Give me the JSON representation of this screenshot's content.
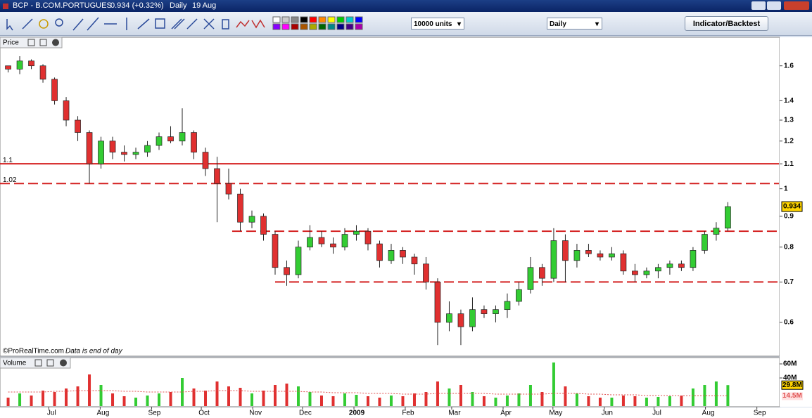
{
  "window": {
    "name": "BCP - B.COM.PORTUGUES",
    "quote": "0.934 (+0.32%)",
    "period": "Daily",
    "date": "19 Aug"
  },
  "toolbar": {
    "units": "10000 units",
    "timeframe": "Daily",
    "button": "Indicator/Backtest"
  },
  "footer": {
    "copyright": "©ProRealTime.com",
    "note": "Data is end of day"
  },
  "chart_data": [
    {
      "type": "candlestick",
      "title": "Price",
      "log_scale": true,
      "up_color": "#33cc33",
      "down_color": "#e03030",
      "ylim": [
        0.53,
        1.78
      ],
      "yticks": [
        0.6,
        0.7,
        0.8,
        0.9,
        1,
        1.1,
        1.2,
        1.3,
        1.4,
        1.6
      ],
      "xlim": [
        -4.2,
        62.9
      ],
      "xticks": [
        {
          "value": 0,
          "label": "Jul"
        },
        {
          "value": 4.43,
          "label": "Aug"
        },
        {
          "value": 8.86,
          "label": "Sep"
        },
        {
          "value": 13.14,
          "label": "Oct"
        },
        {
          "value": 17.57,
          "label": "Nov"
        },
        {
          "value": 21.86,
          "label": "Dec"
        },
        {
          "value": 26.29,
          "label": "2009"
        },
        {
          "value": 30.71,
          "label": "Feb"
        },
        {
          "value": 34.71,
          "label": "Mar"
        },
        {
          "value": 39.14,
          "label": "Apr"
        },
        {
          "value": 43.43,
          "label": "May"
        },
        {
          "value": 47.86,
          "label": "Jun"
        },
        {
          "value": 52.14,
          "label": "Jul"
        },
        {
          "value": 56.57,
          "label": "Aug"
        },
        {
          "value": 61,
          "label": "Sep"
        }
      ],
      "x": [
        -3.5,
        -2.5,
        -1.5,
        -0.5,
        0.5,
        1.5,
        2.5,
        3.5,
        4.5,
        5.5,
        6.5,
        7.5,
        8.5,
        9.5,
        10.5,
        11.5,
        12.5,
        13.5,
        14.5,
        15.5,
        16.5,
        17.5,
        18.5,
        19.5,
        20.5,
        21.5,
        22.5,
        23.5,
        24.5,
        25.5,
        26.5,
        27.5,
        28.5,
        29.5,
        30.5,
        31.5,
        32.5,
        33.5,
        34.5,
        35.5,
        36.5,
        37.5,
        38.5,
        39.5,
        40.5,
        41.5,
        42.5,
        43.5,
        44.5,
        45.5,
        46.5,
        47.5,
        48.5,
        49.5,
        50.5,
        51.5,
        52.5,
        53.5,
        54.5,
        55.5,
        56.5,
        57.5,
        58.5
      ],
      "open": [
        1.6,
        1.58,
        1.63,
        1.6,
        1.52,
        1.4,
        1.3,
        1.24,
        1.1,
        1.2,
        1.15,
        1.14,
        1.15,
        1.18,
        1.22,
        1.2,
        1.24,
        1.15,
        1.08,
        1.02,
        0.98,
        0.88,
        0.9,
        0.84,
        0.74,
        0.72,
        0.8,
        0.83,
        0.81,
        0.8,
        0.84,
        0.85,
        0.81,
        0.76,
        0.79,
        0.77,
        0.75,
        0.7,
        0.6,
        0.62,
        0.59,
        0.63,
        0.62,
        0.63,
        0.65,
        0.68,
        0.74,
        0.71,
        0.82,
        0.76,
        0.79,
        0.78,
        0.77,
        0.78,
        0.73,
        0.72,
        0.73,
        0.74,
        0.75,
        0.74,
        0.79,
        0.84,
        0.86
      ],
      "high": [
        1.6,
        1.66,
        1.64,
        1.61,
        1.53,
        1.42,
        1.32,
        1.25,
        1.22,
        1.22,
        1.18,
        1.17,
        1.2,
        1.24,
        1.27,
        1.36,
        1.25,
        1.17,
        1.13,
        1.08,
        1.0,
        0.92,
        0.91,
        0.85,
        0.76,
        0.82,
        0.87,
        0.85,
        0.83,
        0.86,
        0.87,
        0.86,
        0.82,
        0.81,
        0.8,
        0.78,
        0.77,
        0.71,
        0.65,
        0.63,
        0.66,
        0.64,
        0.64,
        0.67,
        0.7,
        0.77,
        0.75,
        0.86,
        0.84,
        0.81,
        0.81,
        0.79,
        0.8,
        0.79,
        0.75,
        0.74,
        0.75,
        0.76,
        0.76,
        0.8,
        0.85,
        0.88,
        0.95
      ],
      "low": [
        1.56,
        1.55,
        1.58,
        1.5,
        1.38,
        1.27,
        1.2,
        1.02,
        1.08,
        1.12,
        1.11,
        1.12,
        1.13,
        1.16,
        1.19,
        1.18,
        1.12,
        1.05,
        0.88,
        0.96,
        0.85,
        0.86,
        0.82,
        0.72,
        0.69,
        0.71,
        0.79,
        0.8,
        0.78,
        0.79,
        0.82,
        0.79,
        0.74,
        0.75,
        0.75,
        0.72,
        0.68,
        0.55,
        0.58,
        0.55,
        0.58,
        0.61,
        0.6,
        0.61,
        0.64,
        0.67,
        0.69,
        0.7,
        0.7,
        0.74,
        0.77,
        0.76,
        0.76,
        0.72,
        0.7,
        0.71,
        0.71,
        0.72,
        0.73,
        0.73,
        0.78,
        0.82,
        0.85
      ],
      "close": [
        1.58,
        1.63,
        1.6,
        1.52,
        1.4,
        1.3,
        1.24,
        1.1,
        1.2,
        1.15,
        1.14,
        1.15,
        1.18,
        1.22,
        1.2,
        1.24,
        1.15,
        1.08,
        1.02,
        0.98,
        0.88,
        0.9,
        0.84,
        0.74,
        0.72,
        0.8,
        0.83,
        0.81,
        0.8,
        0.84,
        0.85,
        0.81,
        0.76,
        0.79,
        0.77,
        0.75,
        0.7,
        0.6,
        0.62,
        0.59,
        0.63,
        0.62,
        0.63,
        0.65,
        0.68,
        0.74,
        0.71,
        0.82,
        0.76,
        0.79,
        0.78,
        0.77,
        0.78,
        0.73,
        0.72,
        0.73,
        0.74,
        0.75,
        0.74,
        0.79,
        0.84,
        0.86,
        0.934
      ],
      "last_price": 0.934,
      "lines": [
        {
          "value": 1.1,
          "color": "#d42020",
          "dashed": false
        },
        {
          "value": 1.02,
          "color": "#d42020",
          "dashed": true
        },
        {
          "value": 0.85,
          "color": "#d42020",
          "dashed": true,
          "x_start": 15.8
        },
        {
          "value": 0.7,
          "color": "#d42020",
          "dashed": true,
          "x_start": 19.5
        }
      ]
    },
    {
      "type": "volume",
      "title": "Volume",
      "ylim": [
        0,
        68
      ],
      "yticks": [
        {
          "value": 60,
          "label": "60M"
        },
        {
          "value": 40,
          "label": "40M"
        }
      ],
      "values": [
        12,
        18,
        15,
        22,
        20,
        25,
        28,
        45,
        30,
        18,
        14,
        12,
        15,
        18,
        20,
        40,
        25,
        22,
        35,
        28,
        26,
        18,
        22,
        30,
        32,
        28,
        20,
        15,
        14,
        18,
        16,
        14,
        12,
        15,
        14,
        18,
        20,
        35,
        25,
        30,
        20,
        14,
        12,
        15,
        18,
        30,
        20,
        62,
        28,
        18,
        14,
        12,
        12,
        15,
        14,
        12,
        13,
        14,
        15,
        25,
        30,
        35,
        29.8
      ],
      "value_labels_last": "29.8M",
      "average": {
        "color": "#e05050",
        "values": [
          20,
          20,
          20,
          20,
          21,
          21,
          22,
          22,
          22,
          22,
          21,
          21,
          20,
          20,
          20,
          20,
          21,
          21,
          22,
          22,
          22,
          21,
          21,
          21,
          21,
          21,
          20,
          20,
          19,
          19,
          19,
          18,
          18,
          18,
          17,
          17,
          17,
          18,
          18,
          18,
          18,
          18,
          17,
          17,
          17,
          17,
          17,
          18,
          18,
          18,
          17,
          17,
          16,
          16,
          16,
          15,
          15,
          15,
          14.5,
          14.5,
          14.5,
          14.5,
          14.5
        ],
        "label": "14.5M"
      }
    }
  ]
}
